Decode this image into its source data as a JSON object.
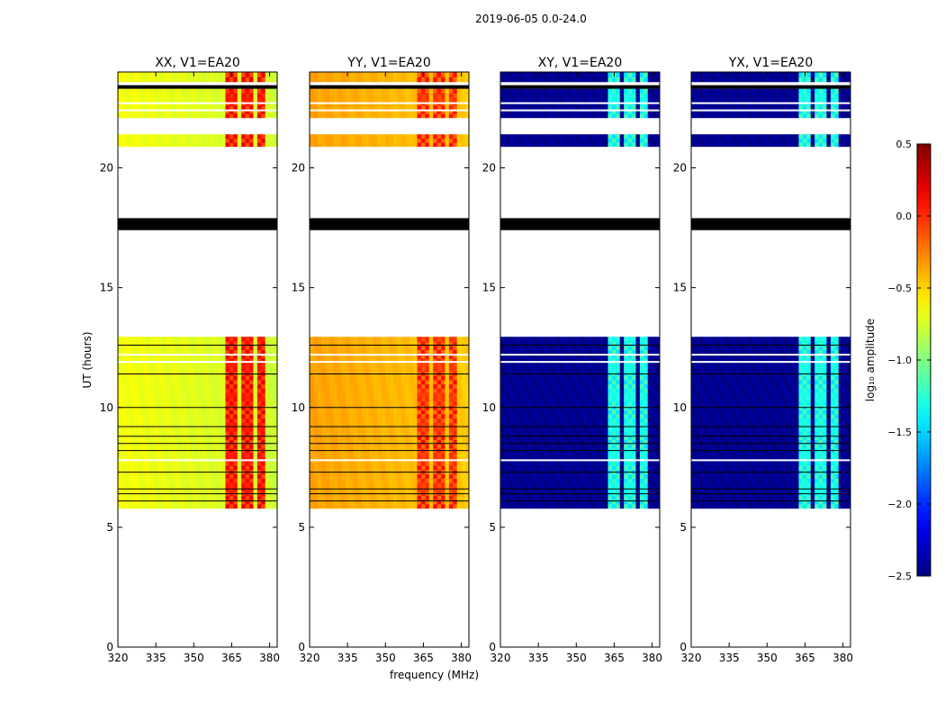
{
  "chart_data": {
    "type": "heatmap",
    "suptitle": "2019-06-05 0.0-24.0",
    "ylabel": "UT (hours)",
    "xlabel": "frequency (MHz)",
    "xlim": [
      320,
      383
    ],
    "ylim": [
      0,
      24
    ],
    "xticks": [
      320,
      335,
      350,
      365,
      380
    ],
    "yticks": [
      0,
      5,
      10,
      15,
      20
    ],
    "colorbar": {
      "label": "log₁₀ amplitude",
      "range": [
        -2.5,
        0.5
      ],
      "ticks": [
        "0.5",
        "0.0",
        "−0.5",
        "−1.0",
        "−1.5",
        "−2.0",
        "−2.5"
      ],
      "colormap": "jet"
    },
    "panels": [
      {
        "title": "XX, V1=EA20",
        "base": -0.65,
        "rfi": 0.05,
        "lowband_offset": 0.0
      },
      {
        "title": "YY, V1=EA20",
        "base": -0.35,
        "rfi": -0.05,
        "lowband_offset": 0.0
      },
      {
        "title": "XY, V1=EA20",
        "base": -2.45,
        "rfi": -1.3,
        "lowband_offset": 0.0
      },
      {
        "title": "YX, V1=EA20",
        "base": -2.45,
        "rfi": -1.3,
        "lowband_offset": 0.0
      }
    ],
    "data_blocks_hours": [
      [
        5.8,
        12.95
      ],
      [
        20.9,
        21.4
      ],
      [
        22.1,
        23.3
      ],
      [
        23.6,
        24.0
      ]
    ],
    "flagged_black_bands_hours": [
      [
        17.4,
        17.9
      ],
      [
        23.3,
        23.45
      ]
    ],
    "rfi_channels_mhz": [
      [
        363,
        367.5
      ],
      [
        368.5,
        373
      ],
      [
        375,
        376
      ],
      [
        377,
        379
      ]
    ]
  }
}
